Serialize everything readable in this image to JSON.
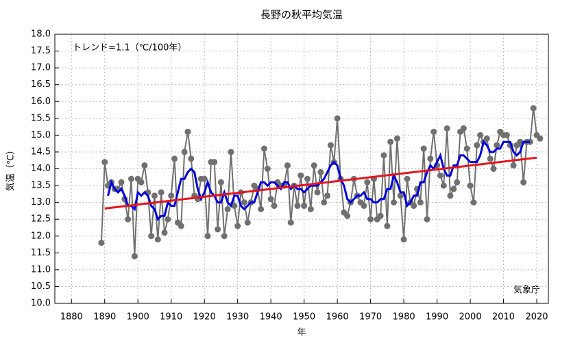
{
  "chart_data": {
    "type": "line",
    "title": "長野の秋平均気温",
    "annotation": "トレンド=1.1（℃/100年）",
    "source": "気象庁",
    "xlabel": "年",
    "ylabel": "気温（℃）",
    "x": [
      1889,
      1890,
      1891,
      1892,
      1893,
      1894,
      1895,
      1896,
      1897,
      1898,
      1899,
      1900,
      1901,
      1902,
      1903,
      1904,
      1905,
      1906,
      1907,
      1908,
      1909,
      1910,
      1911,
      1912,
      1913,
      1914,
      1915,
      1916,
      1917,
      1918,
      1919,
      1920,
      1921,
      1922,
      1923,
      1924,
      1925,
      1926,
      1927,
      1928,
      1929,
      1930,
      1931,
      1932,
      1933,
      1934,
      1935,
      1936,
      1937,
      1938,
      1939,
      1940,
      1941,
      1942,
      1943,
      1944,
      1945,
      1946,
      1947,
      1948,
      1949,
      1950,
      1951,
      1952,
      1953,
      1954,
      1955,
      1956,
      1957,
      1958,
      1959,
      1960,
      1961,
      1962,
      1963,
      1964,
      1965,
      1966,
      1967,
      1968,
      1969,
      1970,
      1971,
      1972,
      1973,
      1974,
      1975,
      1976,
      1977,
      1978,
      1979,
      1980,
      1981,
      1982,
      1983,
      1984,
      1985,
      1986,
      1987,
      1988,
      1989,
      1990,
      1991,
      1992,
      1993,
      1994,
      1995,
      1996,
      1997,
      1998,
      1999,
      2000,
      2001,
      2002,
      2003,
      2004,
      2005,
      2006,
      2007,
      2008,
      2009,
      2010,
      2011,
      2012,
      2013,
      2014,
      2015,
      2016,
      2017,
      2018,
      2019,
      2020,
      2021
    ],
    "series": [
      {
        "color": "#707070",
        "markers": true,
        "values": [
          11.8,
          14.2,
          13.5,
          13.6,
          13.4,
          13.4,
          13.6,
          13.1,
          12.5,
          13.7,
          11.4,
          13.7,
          13.6,
          14.1,
          13.3,
          12.0,
          13.2,
          11.9,
          13.3,
          12.1,
          12.5,
          13.2,
          14.3,
          12.4,
          12.3,
          14.5,
          15.1,
          14.3,
          13.2,
          13.1,
          13.7,
          13.7,
          12.0,
          14.2,
          14.2,
          12.2,
          13.6,
          12.0,
          12.8,
          14.5,
          12.9,
          12.3,
          13.3,
          13.0,
          12.4,
          13.0,
          13.5,
          13.4,
          12.8,
          14.6,
          14.0,
          13.1,
          12.9,
          13.6,
          13.5,
          13.5,
          14.1,
          12.4,
          13.5,
          12.9,
          13.8,
          12.9,
          13.7,
          12.8,
          14.1,
          13.3,
          13.9,
          13.0,
          13.2,
          14.7,
          14.2,
          15.5,
          13.7,
          12.7,
          12.6,
          13.0,
          13.7,
          13.2,
          13.0,
          12.9,
          13.6,
          12.5,
          13.7,
          12.5,
          12.6,
          14.4,
          12.3,
          14.8,
          13.0,
          14.9,
          13.2,
          11.9,
          13.7,
          13.0,
          12.9,
          13.4,
          13.0,
          14.6,
          12.5,
          14.3,
          15.1,
          14.1,
          13.8,
          13.5,
          15.2,
          13.2,
          13.4,
          13.6,
          15.1,
          15.2,
          14.6,
          13.5,
          13.0,
          14.7,
          15.0,
          14.8,
          14.9,
          14.3,
          14.0,
          14.7,
          15.1,
          15.0,
          15.0,
          14.7,
          14.1,
          14.7,
          14.8,
          13.6,
          14.8,
          14.8,
          15.8,
          15.0,
          14.9
        ]
      },
      {
        "color": "#0000e0",
        "markers": false,
        "values": [
          null,
          null,
          13.2,
          13.6,
          13.4,
          13.3,
          13.4,
          13.2,
          12.9,
          12.9,
          12.8,
          13.3,
          13.2,
          13.3,
          13.2,
          12.9,
          12.8,
          12.5,
          12.6,
          12.6,
          13.0,
          12.9,
          12.9,
          13.3,
          13.7,
          13.7,
          13.9,
          14.0,
          13.9,
          13.4,
          13.1,
          13.3,
          13.6,
          13.3,
          13.2,
          13.0,
          13.0,
          13.3,
          13.0,
          12.9,
          13.2,
          13.2,
          12.9,
          12.8,
          12.9,
          13.0,
          13.0,
          13.3,
          13.6,
          13.6,
          13.5,
          13.6,
          13.6,
          13.5,
          13.4,
          13.6,
          13.6,
          13.4,
          13.5,
          13.4,
          13.4,
          13.3,
          13.4,
          13.5,
          13.5,
          13.5,
          13.6,
          13.7,
          13.9,
          14.1,
          14.2,
          14.1,
          13.7,
          13.5,
          13.1,
          13.0,
          13.1,
          13.2,
          13.2,
          13.3,
          13.1,
          13.1,
          13.0,
          13.0,
          13.1,
          13.1,
          13.4,
          13.4,
          13.8,
          13.6,
          13.3,
          13.3,
          12.9,
          13.0,
          13.2,
          13.2,
          13.6,
          13.6,
          13.9,
          14.1,
          14.0,
          14.2,
          14.4,
          14.0,
          13.8,
          13.8,
          14.1,
          14.1,
          14.4,
          14.4,
          14.3,
          14.2,
          14.2,
          14.2,
          14.4,
          14.8,
          14.7,
          14.5,
          14.5,
          14.6,
          14.6,
          14.8,
          14.8,
          14.8,
          14.5,
          14.4,
          14.5,
          14.8,
          14.8,
          14.8,
          null,
          null,
          null
        ]
      },
      {
        "color": "#e8141c",
        "markers": false,
        "x": [
          1890,
          2020
        ],
        "values": [
          12.82,
          14.33
        ]
      }
    ],
    "xlim": [
      1875,
      2023.5
    ],
    "xticks": [
      1880,
      1890,
      1900,
      1910,
      1920,
      1930,
      1940,
      1950,
      1960,
      1970,
      1980,
      1990,
      2000,
      2010,
      2020
    ],
    "ylim": [
      10,
      18
    ],
    "yticks": [
      {
        "value": 10,
        "label": "10.0"
      },
      10.5,
      {
        "value": 11,
        "label": "11.0"
      },
      11.5,
      {
        "value": 12,
        "label": "12.0"
      },
      12.5,
      {
        "value": 13,
        "label": "13.0"
      },
      13.5,
      {
        "value": 14,
        "label": "14.0"
      },
      14.5,
      {
        "value": 15,
        "label": "15.0"
      },
      15.5,
      {
        "value": 16,
        "label": "16.0"
      },
      16.5,
      {
        "value": 17,
        "label": "17.0"
      },
      17.5,
      {
        "value": 18,
        "label": "18.0"
      }
    ],
    "grid": true
  }
}
